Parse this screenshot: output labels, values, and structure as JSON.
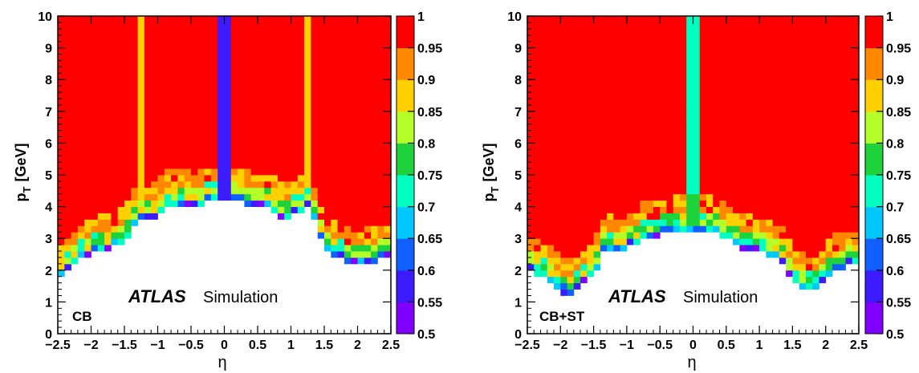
{
  "chart_data": [
    {
      "type": "heatmap",
      "id": "left",
      "tag": "CB",
      "experiment": "ATLAS",
      "subtitle": "Simulation",
      "xlabel": "η",
      "ylabel_main": "p",
      "ylabel_sub": "T",
      "ylabel_unit": "[GeV]",
      "xlim": [
        -2.5,
        2.5
      ],
      "ylim": [
        0,
        10
      ],
      "xticks": [
        -2.5,
        -2,
        -1.5,
        -1,
        -0.5,
        0,
        0.5,
        1,
        1.5,
        2,
        2.5
      ],
      "xtick_labels": [
        "−2.5",
        "−2",
        "−1.5",
        "−1",
        "−0.5",
        "0",
        "0.5",
        "1",
        "1.5",
        "2",
        "2.5"
      ],
      "yticks": [
        0,
        1,
        2,
        3,
        4,
        5,
        6,
        7,
        8,
        9,
        10
      ],
      "ytick_labels": [
        "0",
        "1",
        "2",
        "3",
        "4",
        "5",
        "6",
        "7",
        "8",
        "9",
        "10"
      ],
      "zlim": [
        0.5,
        1
      ],
      "zticks": [
        0.5,
        0.55,
        0.6,
        0.65,
        0.7,
        0.75,
        0.8,
        0.85,
        0.9,
        0.95,
        1
      ],
      "ztick_labels": [
        "0.5",
        "0.55",
        "0.6",
        "0.65",
        "0.7",
        "0.75",
        "0.8",
        "0.85",
        "0.9",
        "0.95",
        "1"
      ],
      "eta_bins": 50,
      "pt_bins": 50,
      "threshold_pt": [
        [
          -2.5,
          1.6
        ],
        [
          -2.3,
          2.1
        ],
        [
          -2.1,
          2.4
        ],
        [
          -1.9,
          2.6
        ],
        [
          -1.7,
          2.7
        ],
        [
          -1.5,
          2.9
        ],
        [
          -1.3,
          3.6
        ],
        [
          -1.1,
          3.5
        ],
        [
          -0.9,
          4.0
        ],
        [
          -0.7,
          4.1
        ],
        [
          -0.5,
          4.1
        ],
        [
          -0.3,
          4.1
        ],
        [
          -0.1,
          4.2
        ],
        [
          0.1,
          4.2
        ],
        [
          0.3,
          4.1
        ],
        [
          0.5,
          4.0
        ],
        [
          0.7,
          4.0
        ],
        [
          0.9,
          3.6
        ],
        [
          1.1,
          3.8
        ],
        [
          1.3,
          4.0
        ],
        [
          1.5,
          2.6
        ],
        [
          1.7,
          2.4
        ],
        [
          1.9,
          2.2
        ],
        [
          2.1,
          2.2
        ],
        [
          2.3,
          2.3
        ],
        [
          2.5,
          2.4
        ]
      ],
      "plateau_efficiency": 0.99,
      "low_efficiency_bands": [
        {
          "eta_min": -0.1,
          "eta_max": 0.1,
          "efficiency": 0.57
        },
        {
          "eta_min": -1.3,
          "eta_max": -1.2,
          "efficiency": 0.87
        },
        {
          "eta_min": 1.2,
          "eta_max": 1.3,
          "efficiency": 0.87
        }
      ]
    },
    {
      "type": "heatmap",
      "id": "right",
      "tag": "CB+ST",
      "experiment": "ATLAS",
      "subtitle": "Simulation",
      "xlabel": "η",
      "ylabel_main": "p",
      "ylabel_sub": "T",
      "ylabel_unit": "[GeV]",
      "xlim": [
        -2.5,
        2.5
      ],
      "ylim": [
        0,
        10
      ],
      "xticks": [
        -2.5,
        -2,
        -1.5,
        -1,
        -0.5,
        0,
        0.5,
        1,
        1.5,
        2,
        2.5
      ],
      "xtick_labels": [
        "−2.5",
        "−2",
        "−1.5",
        "−1",
        "−0.5",
        "0",
        "0.5",
        "1",
        "1.5",
        "2",
        "2.5"
      ],
      "yticks": [
        0,
        1,
        2,
        3,
        4,
        5,
        6,
        7,
        8,
        9,
        10
      ],
      "ytick_labels": [
        "0",
        "1",
        "2",
        "3",
        "4",
        "5",
        "6",
        "7",
        "8",
        "9",
        "10"
      ],
      "zlim": [
        0.5,
        1
      ],
      "zticks": [
        0.5,
        0.55,
        0.6,
        0.65,
        0.7,
        0.75,
        0.8,
        0.85,
        0.9,
        0.95,
        1
      ],
      "ztick_labels": [
        "0.5",
        "0.55",
        "0.6",
        "0.65",
        "0.7",
        "0.75",
        "0.8",
        "0.85",
        "0.9",
        "0.95",
        "1"
      ],
      "eta_bins": 50,
      "pt_bins": 50,
      "threshold_pt": [
        [
          -2.5,
          2.0
        ],
        [
          -2.3,
          1.8
        ],
        [
          -2.1,
          1.6
        ],
        [
          -1.9,
          1.2
        ],
        [
          -1.7,
          1.4
        ],
        [
          -1.5,
          1.9
        ],
        [
          -1.3,
          2.7
        ],
        [
          -1.1,
          2.5
        ],
        [
          -0.9,
          2.8
        ],
        [
          -0.7,
          3.1
        ],
        [
          -0.5,
          3.1
        ],
        [
          -0.3,
          3.2
        ],
        [
          -0.1,
          3.2
        ],
        [
          0.1,
          3.2
        ],
        [
          0.3,
          3.2
        ],
        [
          0.5,
          3.0
        ],
        [
          0.7,
          2.7
        ],
        [
          0.9,
          2.6
        ],
        [
          1.1,
          2.5
        ],
        [
          1.3,
          2.5
        ],
        [
          1.5,
          1.6
        ],
        [
          1.7,
          1.4
        ],
        [
          1.9,
          1.4
        ],
        [
          2.1,
          2.0
        ],
        [
          2.3,
          2.1
        ],
        [
          2.5,
          2.2
        ]
      ],
      "plateau_efficiency": 0.99,
      "low_efficiency_bands": [
        {
          "eta_min": -0.1,
          "eta_max": 0.1,
          "efficiency": 0.74
        }
      ]
    }
  ]
}
